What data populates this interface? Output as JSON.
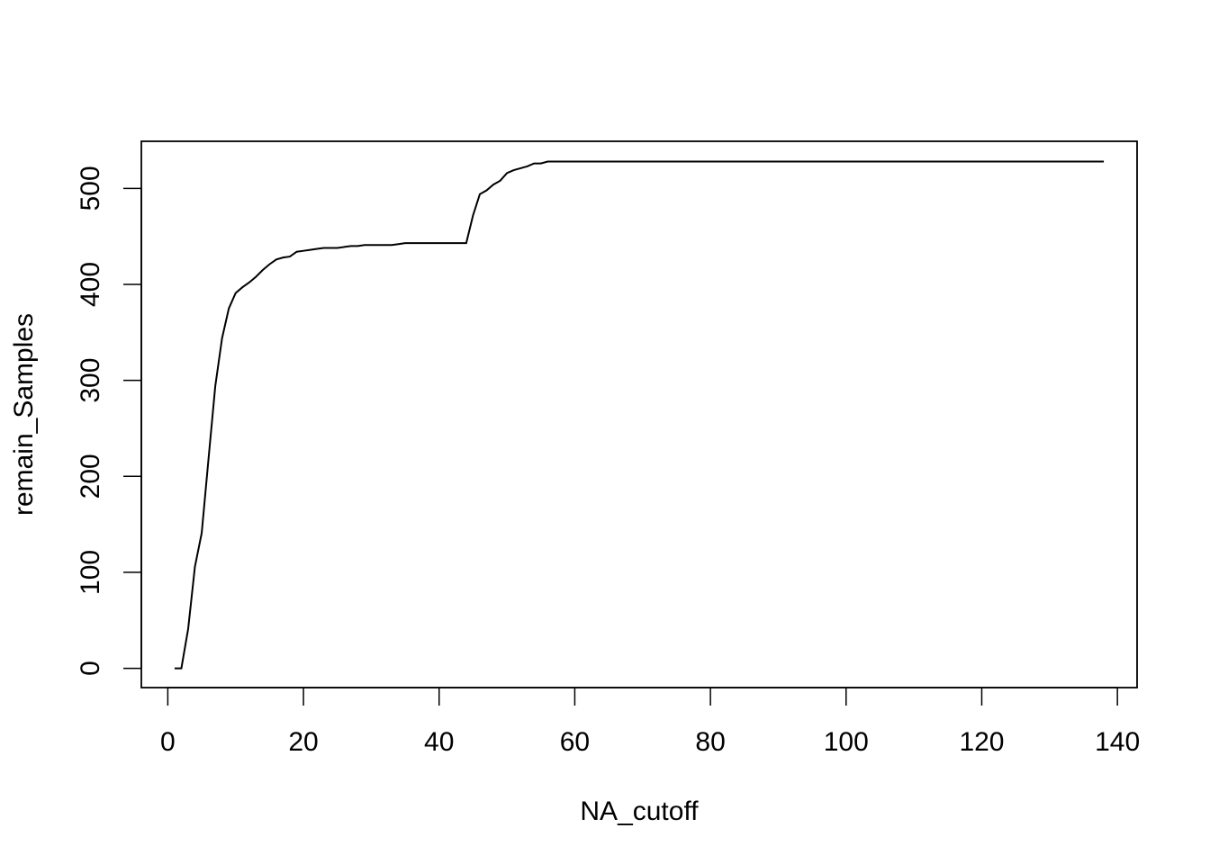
{
  "chart_data": {
    "type": "line",
    "title": "",
    "xlabel": "NA_cutoff",
    "ylabel": "remain_Samples",
    "xlim": [
      -3.9,
      142.9
    ],
    "ylim": [
      -20.1,
      549.1
    ],
    "x_ticks": [
      0,
      20,
      40,
      60,
      80,
      100,
      120,
      140
    ],
    "y_ticks": [
      0,
      100,
      200,
      300,
      400,
      500
    ],
    "grid": false,
    "legend": "none",
    "line_color": "#000000",
    "series": [
      {
        "x": [
          1,
          2,
          3,
          4,
          5,
          6,
          7,
          8,
          9,
          10,
          11,
          12,
          13,
          14,
          15,
          16,
          17,
          18,
          19,
          20,
          21,
          22,
          23,
          24,
          25,
          26,
          27,
          28,
          29,
          30,
          31,
          32,
          33,
          34,
          35,
          36,
          37,
          38,
          39,
          40,
          41,
          42,
          43,
          44,
          45,
          46,
          47,
          48,
          49,
          50,
          51,
          52,
          53,
          54,
          55,
          56,
          57,
          58,
          59,
          60,
          138
        ],
        "y": [
          0,
          0,
          41,
          106,
          141,
          218,
          294,
          344,
          375,
          391,
          397,
          402,
          408,
          415,
          421,
          426,
          428,
          429,
          434,
          435,
          436,
          437,
          438,
          438,
          438,
          439,
          440,
          440,
          441,
          441,
          441,
          441,
          441,
          442,
          443,
          443,
          443,
          443,
          443,
          443,
          443,
          443,
          443,
          443,
          472,
          494,
          498,
          504,
          508,
          516,
          519,
          521,
          523,
          526,
          526,
          528,
          528,
          528,
          528,
          528,
          528
        ]
      }
    ]
  }
}
